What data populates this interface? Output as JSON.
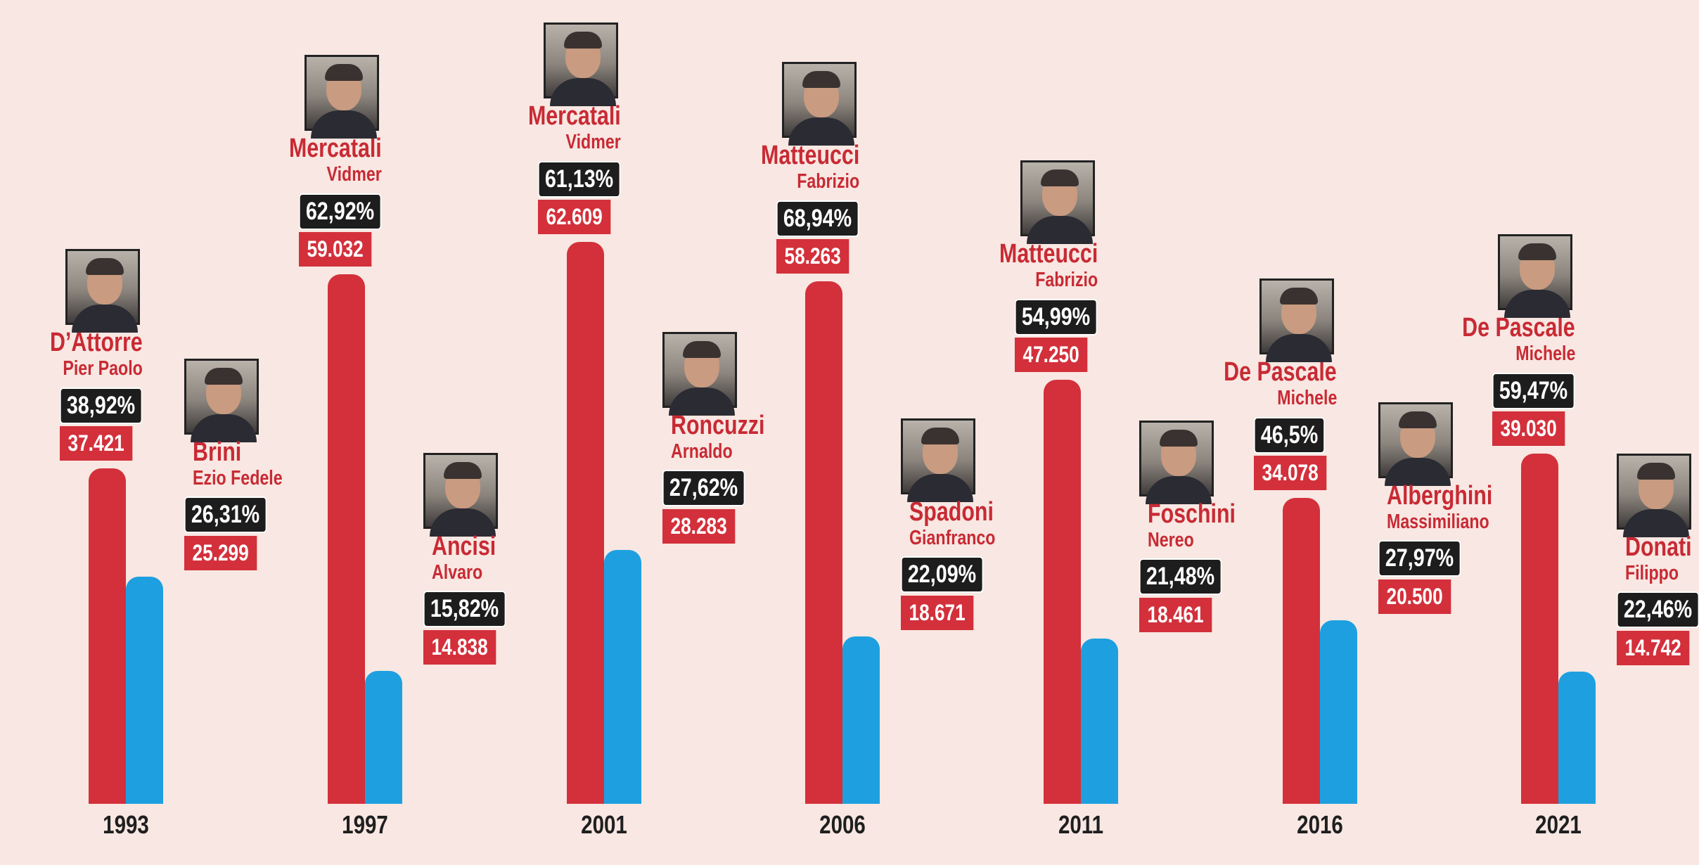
{
  "chart_data": {
    "type": "bar",
    "categories": [
      "1993",
      "1997",
      "2001",
      "2006",
      "2011",
      "2016",
      "2021"
    ],
    "series": [
      {
        "values": [
          37421,
          59032,
          62609,
          58263,
          47250,
          34078,
          39030
        ]
      },
      {
        "values": [
          25299,
          14838,
          28283,
          18671,
          18461,
          20500,
          14742
        ]
      }
    ],
    "ylim": [
      0,
      90000
    ],
    "grid": false,
    "candidates": [
      {
        "winner": {
          "surname": "D’Attorre",
          "firstname": "Pier Paolo",
          "pct": "38,92%",
          "votes": "37.421"
        },
        "runner": {
          "surname": "Brini",
          "firstname": "Ezio Fedele",
          "pct": "26,31%",
          "votes": "25.299"
        }
      },
      {
        "winner": {
          "surname": "Mercatali",
          "firstname": "Vidmer",
          "pct": "62,92%",
          "votes": "59.032"
        },
        "runner": {
          "surname": "Ancisi",
          "firstname": "Alvaro",
          "pct": "15,82%",
          "votes": "14.838"
        }
      },
      {
        "winner": {
          "surname": "Mercatali",
          "firstname": "Vidmer",
          "pct": "61,13%",
          "votes": "62.609"
        },
        "runner": {
          "surname": "Roncuzzi",
          "firstname": "Arnaldo",
          "pct": "27,62%",
          "votes": "28.283"
        }
      },
      {
        "winner": {
          "surname": "Matteucci",
          "firstname": "Fabrizio",
          "pct": "68,94%",
          "votes": "58.263"
        },
        "runner": {
          "surname": "Spadoni",
          "firstname": "Gianfranco",
          "pct": "22,09%",
          "votes": "18.671"
        }
      },
      {
        "winner": {
          "surname": "Matteucci",
          "firstname": "Fabrizio",
          "pct": "54,99%",
          "votes": "47.250"
        },
        "runner": {
          "surname": "Foschini",
          "firstname": "Nereo",
          "pct": "21,48%",
          "votes": "18.461"
        }
      },
      {
        "winner": {
          "surname": "De Pascale",
          "firstname": "Michele",
          "pct": "46,5%",
          "votes": "34.078"
        },
        "runner": {
          "surname": "Alberghini",
          "firstname": "Massimiliano",
          "pct": "27,97%",
          "votes": "20.500"
        }
      },
      {
        "winner": {
          "surname": "De Pascale",
          "firstname": "Michele",
          "pct": "59,47%",
          "votes": "39.030"
        },
        "runner": {
          "surname": "Donati",
          "firstname": "Filippo",
          "pct": "22,46%",
          "votes": "14.742"
        }
      }
    ],
    "colors": {
      "winner": "#d3303b",
      "runner": "#1ea0e0",
      "background": "#f8e7e2",
      "pct_box": "#1d1d1d"
    }
  }
}
